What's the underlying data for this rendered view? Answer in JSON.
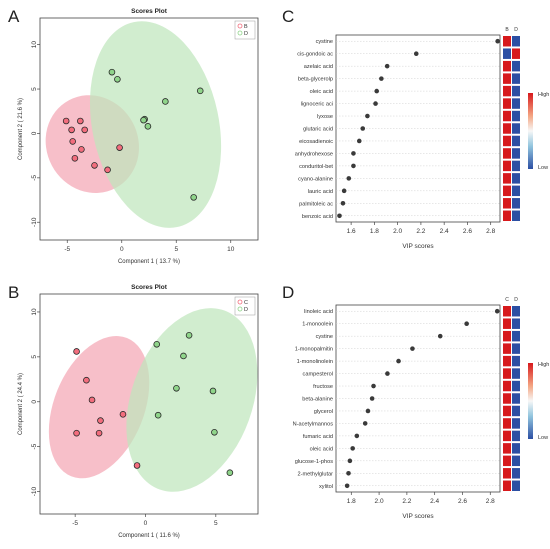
{
  "panel_labels": {
    "A": "A",
    "B": "B",
    "C": "C",
    "D": "D"
  },
  "colors": {
    "group_red": "#f26d7d",
    "group_green": "#8fd48a",
    "ellipse_red": "#f4a6b4",
    "ellipse_green": "#bfe6bd",
    "vip_dot": "#3a3a3a",
    "heat_high": "#d7191c",
    "heat_low": "#2c4fa3"
  },
  "chart_data": [
    {
      "panel": "A",
      "type": "scatter",
      "title": "Scores Plot",
      "xlabel": "Component 1 ( 13.7 %)",
      "ylabel": "Component 2 ( 21.6 %)",
      "xlim": [
        -7.5,
        12.5
      ],
      "ylim": [
        -12,
        13
      ],
      "xticks": [
        -5,
        0,
        5,
        10
      ],
      "yticks": [
        -10,
        -5,
        0,
        5,
        10
      ],
      "legend": [
        "B",
        "D"
      ],
      "legend_position": "top-right",
      "series": [
        {
          "name": "B",
          "color": "#f26d7d",
          "points": [
            [
              -5.1,
              1.4
            ],
            [
              -3.8,
              1.4
            ],
            [
              -3.4,
              0.4
            ],
            [
              -4.6,
              0.4
            ],
            [
              -4.5,
              -0.9
            ],
            [
              -3.7,
              -1.8
            ],
            [
              -4.3,
              -2.8
            ],
            [
              -2.5,
              -3.6
            ],
            [
              -1.3,
              -4.1
            ],
            [
              -0.2,
              -1.6
            ]
          ]
        },
        {
          "name": "D",
          "color": "#8fd48a",
          "points": [
            [
              -0.9,
              6.9
            ],
            [
              -0.4,
              6.1
            ],
            [
              2.1,
              1.6
            ],
            [
              2.4,
              0.8
            ],
            [
              4.0,
              3.6
            ],
            [
              7.2,
              4.8
            ],
            [
              6.6,
              -7.2
            ],
            [
              2.0,
              1.5
            ]
          ]
        }
      ]
    },
    {
      "panel": "B",
      "type": "scatter",
      "title": "Scores Plot",
      "xlabel": "Component 1 ( 11.6 %)",
      "ylabel": "Component 2 ( 24.4 %)",
      "xlim": [
        -7.5,
        8
      ],
      "ylim": [
        -12.5,
        12
      ],
      "xticks": [
        -5,
        0,
        5
      ],
      "yticks": [
        -10,
        -5,
        0,
        5,
        10
      ],
      "legend": [
        "C",
        "D"
      ],
      "legend_position": "top-right",
      "series": [
        {
          "name": "C",
          "color": "#f26d7d",
          "points": [
            [
              -4.9,
              5.6
            ],
            [
              -4.2,
              2.4
            ],
            [
              -3.8,
              0.2
            ],
            [
              -4.9,
              -3.5
            ],
            [
              -3.2,
              -2.1
            ],
            [
              -3.3,
              -3.5
            ],
            [
              -1.6,
              -1.4
            ],
            [
              -0.6,
              -7.1
            ]
          ]
        },
        {
          "name": "D",
          "color": "#8fd48a",
          "points": [
            [
              0.8,
              6.4
            ],
            [
              3.1,
              7.4
            ],
            [
              2.7,
              5.1
            ],
            [
              2.2,
              1.5
            ],
            [
              0.9,
              -1.5
            ],
            [
              4.8,
              1.2
            ],
            [
              4.9,
              -3.4
            ],
            [
              6.0,
              -7.9
            ]
          ]
        }
      ]
    },
    {
      "panel": "C",
      "type": "scatter",
      "xlabel": "VIP scores",
      "xlim": [
        1.47,
        2.88
      ],
      "xticks": [
        1.6,
        1.8,
        2.0,
        2.2,
        2.4,
        2.6,
        2.8
      ],
      "heatmap_columns": [
        "B",
        "D"
      ],
      "heat_legend": {
        "high": "High",
        "low": "Low"
      },
      "items": [
        {
          "label": "cystine",
          "value": 2.86,
          "heat": [
            "high",
            "low"
          ]
        },
        {
          "label": "cis-gondoic ac",
          "value": 2.16,
          "heat": [
            "low",
            "high"
          ]
        },
        {
          "label": "azelaic acid",
          "value": 1.91,
          "heat": [
            "high",
            "low"
          ]
        },
        {
          "label": "beta-glycerolp",
          "value": 1.86,
          "heat": [
            "high",
            "low"
          ]
        },
        {
          "label": "oleic acid",
          "value": 1.82,
          "heat": [
            "high",
            "low"
          ]
        },
        {
          "label": "lignoceric aci",
          "value": 1.81,
          "heat": [
            "high",
            "low"
          ]
        },
        {
          "label": "lyxose",
          "value": 1.74,
          "heat": [
            "high",
            "low"
          ]
        },
        {
          "label": "glutaric acid",
          "value": 1.7,
          "heat": [
            "high",
            "low"
          ]
        },
        {
          "label": "eicosadienoic",
          "value": 1.67,
          "heat": [
            "high",
            "low"
          ]
        },
        {
          "label": "anhydrohexose",
          "value": 1.62,
          "heat": [
            "high",
            "low"
          ]
        },
        {
          "label": "conduritol-bet",
          "value": 1.62,
          "heat": [
            "high",
            "low"
          ]
        },
        {
          "label": "cyano-alanine",
          "value": 1.58,
          "heat": [
            "high",
            "low"
          ]
        },
        {
          "label": "lauric acid",
          "value": 1.54,
          "heat": [
            "high",
            "low"
          ]
        },
        {
          "label": "palmitoleic ac",
          "value": 1.53,
          "heat": [
            "high",
            "low"
          ]
        },
        {
          "label": "benzoic acid",
          "value": 1.5,
          "heat": [
            "high",
            "low"
          ]
        }
      ]
    },
    {
      "panel": "D",
      "type": "scatter",
      "xlabel": "VIP scores",
      "xlim": [
        1.69,
        2.87
      ],
      "xticks": [
        1.8,
        2.0,
        2.2,
        2.4,
        2.6,
        2.8
      ],
      "heatmap_columns": [
        "C",
        "D"
      ],
      "heat_legend": {
        "high": "High",
        "low": "Low"
      },
      "items": [
        {
          "label": "linoleic acid",
          "value": 2.85,
          "heat": [
            "high",
            "low"
          ]
        },
        {
          "label": "1-monoolein",
          "value": 2.63,
          "heat": [
            "high",
            "low"
          ]
        },
        {
          "label": "cystine",
          "value": 2.44,
          "heat": [
            "high",
            "low"
          ]
        },
        {
          "label": "1-monopalmitin",
          "value": 2.24,
          "heat": [
            "high",
            "low"
          ]
        },
        {
          "label": "1-monolinolein",
          "value": 2.14,
          "heat": [
            "high",
            "low"
          ]
        },
        {
          "label": "campesterol",
          "value": 2.06,
          "heat": [
            "high",
            "low"
          ]
        },
        {
          "label": "fructose",
          "value": 1.96,
          "heat": [
            "high",
            "low"
          ]
        },
        {
          "label": "beta-alanine",
          "value": 1.95,
          "heat": [
            "high",
            "low"
          ]
        },
        {
          "label": "glycerol",
          "value": 1.92,
          "heat": [
            "high",
            "low"
          ]
        },
        {
          "label": "N-acetylmannos",
          "value": 1.9,
          "heat": [
            "high",
            "low"
          ]
        },
        {
          "label": "fumaric acid",
          "value": 1.84,
          "heat": [
            "high",
            "low"
          ]
        },
        {
          "label": "oleic acid",
          "value": 1.81,
          "heat": [
            "high",
            "low"
          ]
        },
        {
          "label": "glucose-1-phos",
          "value": 1.79,
          "heat": [
            "high",
            "low"
          ]
        },
        {
          "label": "2-methylglutar",
          "value": 1.78,
          "heat": [
            "high",
            "low"
          ]
        },
        {
          "label": "xylitol",
          "value": 1.77,
          "heat": [
            "high",
            "low"
          ]
        }
      ]
    }
  ]
}
